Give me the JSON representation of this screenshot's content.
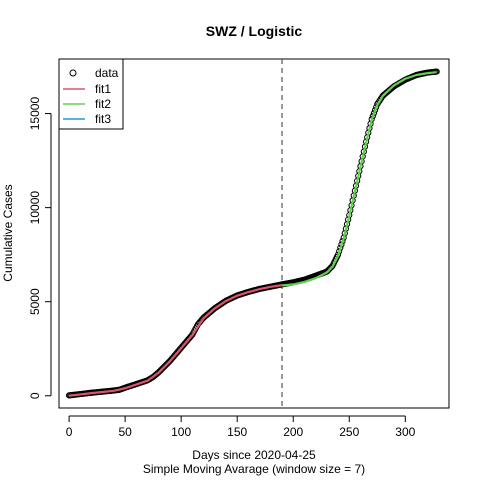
{
  "chart_data": {
    "type": "line",
    "title": "SWZ / Logistic",
    "xlabel": "Days since 2020-04-25",
    "xlabel2": "Simple Moving Avarage (window size = 7)",
    "ylabel": "Cumulative Cases",
    "xlim": [
      -9,
      339
    ],
    "ylim": [
      -650,
      17900
    ],
    "xticks": [
      0,
      50,
      100,
      150,
      200,
      250,
      300
    ],
    "yticks": [
      0,
      5000,
      10000,
      15000
    ],
    "vline": 190,
    "legend_position": "top-left",
    "legend": [
      {
        "name": "data",
        "kind": "point",
        "color": "#000000"
      },
      {
        "name": "fit1",
        "kind": "line",
        "color": "#DF536B"
      },
      {
        "name": "fit2",
        "kind": "line",
        "color": "#61D04F"
      },
      {
        "name": "fit3",
        "kind": "line",
        "color": "#2297E6"
      }
    ],
    "data_points": [
      [
        0,
        20
      ],
      [
        10,
        90
      ],
      [
        20,
        160
      ],
      [
        30,
        220
      ],
      [
        40,
        280
      ],
      [
        45,
        320
      ],
      [
        50,
        430
      ],
      [
        60,
        620
      ],
      [
        70,
        820
      ],
      [
        75,
        1000
      ],
      [
        80,
        1250
      ],
      [
        90,
        1850
      ],
      [
        100,
        2550
      ],
      [
        110,
        3250
      ],
      [
        115,
        3800
      ],
      [
        120,
        4150
      ],
      [
        130,
        4650
      ],
      [
        140,
        5050
      ],
      [
        150,
        5330
      ],
      [
        160,
        5520
      ],
      [
        170,
        5680
      ],
      [
        180,
        5800
      ],
      [
        190,
        5920
      ],
      [
        200,
        6030
      ],
      [
        210,
        6170
      ],
      [
        220,
        6380
      ],
      [
        230,
        6600
      ],
      [
        235,
        6900
      ],
      [
        240,
        7500
      ],
      [
        245,
        8400
      ],
      [
        250,
        9600
      ],
      [
        255,
        10900
      ],
      [
        260,
        12200
      ],
      [
        265,
        13500
      ],
      [
        270,
        14700
      ],
      [
        275,
        15500
      ],
      [
        280,
        15950
      ],
      [
        290,
        16450
      ],
      [
        300,
        16800
      ],
      [
        310,
        17050
      ],
      [
        320,
        17180
      ],
      [
        328,
        17230
      ]
    ],
    "fit1": [
      [
        0,
        0
      ],
      [
        10,
        70
      ],
      [
        20,
        140
      ],
      [
        30,
        200
      ],
      [
        40,
        265
      ],
      [
        50,
        400
      ],
      [
        60,
        600
      ],
      [
        70,
        800
      ],
      [
        80,
        1230
      ],
      [
        90,
        1830
      ],
      [
        100,
        2530
      ],
      [
        110,
        3230
      ],
      [
        120,
        4120
      ],
      [
        130,
        4640
      ],
      [
        140,
        5040
      ],
      [
        150,
        5320
      ],
      [
        160,
        5510
      ],
      [
        170,
        5670
      ],
      [
        180,
        5790
      ],
      [
        190,
        5880
      ]
    ],
    "fit2": [
      [
        190,
        5860
      ],
      [
        200,
        5920
      ],
      [
        210,
        6050
      ],
      [
        220,
        6250
      ],
      [
        230,
        6550
      ],
      [
        235,
        6850
      ],
      [
        240,
        7450
      ],
      [
        245,
        8350
      ],
      [
        250,
        9550
      ],
      [
        255,
        10850
      ],
      [
        260,
        12150
      ],
      [
        265,
        13450
      ],
      [
        270,
        14650
      ],
      [
        275,
        15450
      ],
      [
        280,
        15950
      ],
      [
        290,
        16500
      ],
      [
        300,
        16850
      ],
      [
        310,
        17050
      ],
      [
        320,
        17150
      ],
      [
        328,
        17200
      ]
    ]
  }
}
